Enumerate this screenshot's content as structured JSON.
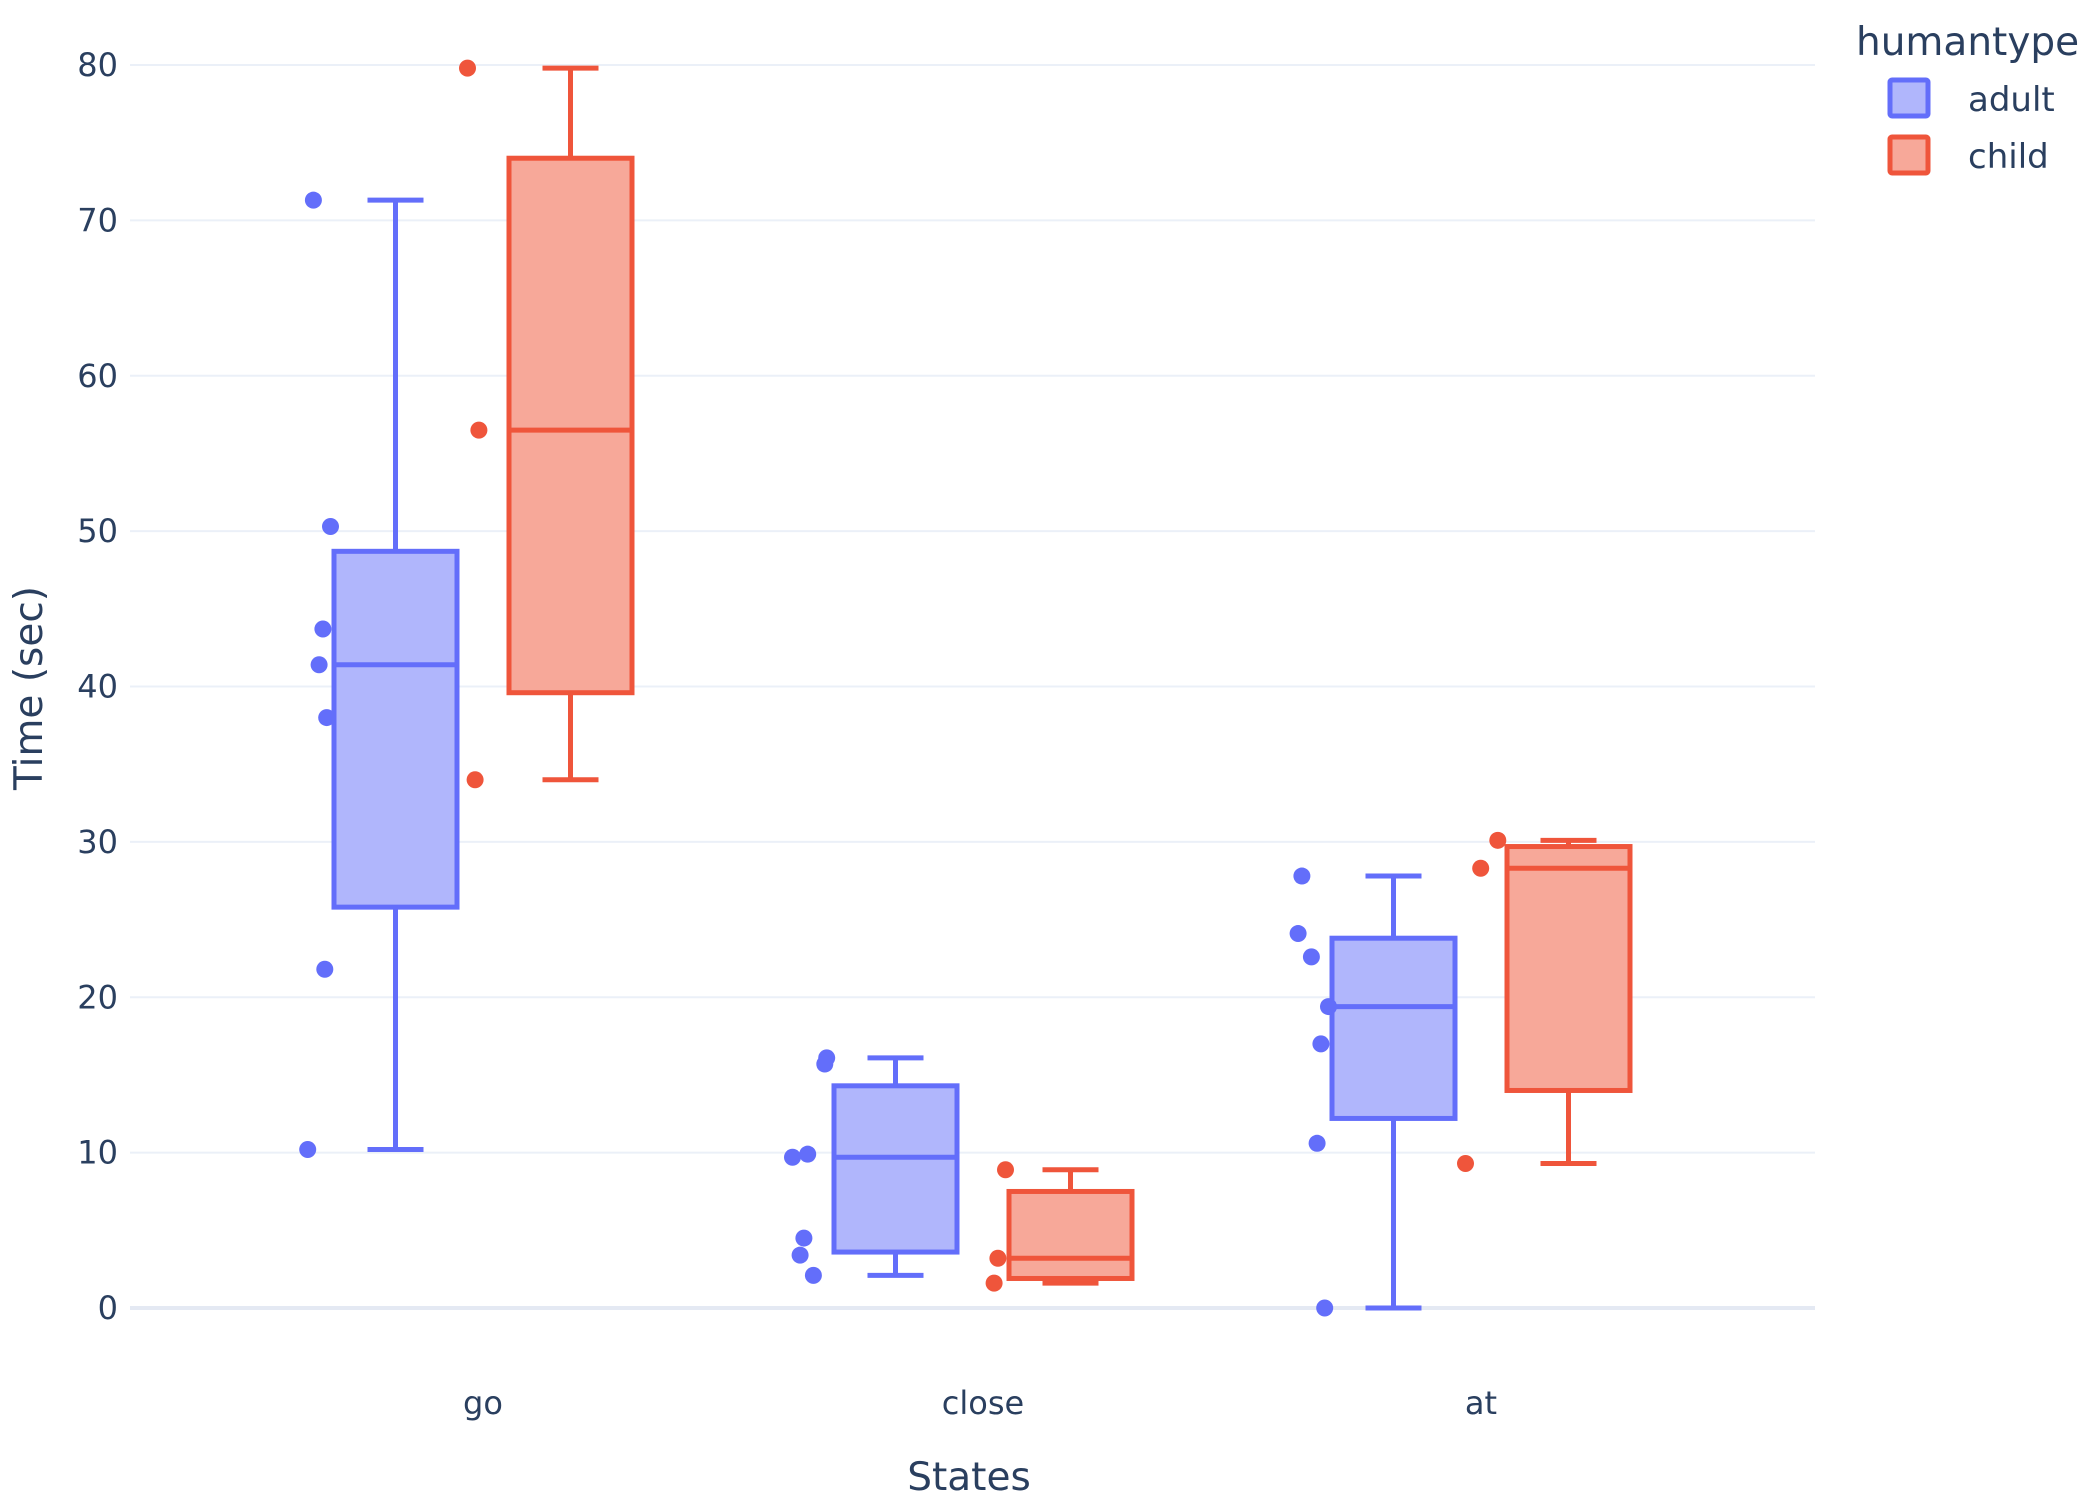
{
  "chart_data": {
    "type": "box",
    "title": "",
    "xlabel": "States",
    "ylabel": "Time (sec)",
    "categories": [
      "go",
      "close",
      "at"
    ],
    "ylim": [
      -5.5,
      83.5
    ],
    "yticks": [
      0,
      10,
      20,
      30,
      40,
      50,
      60,
      70,
      80
    ],
    "grid": true,
    "legend": {
      "title": "humantype",
      "placement": "top-right"
    },
    "series": [
      {
        "name": "adult",
        "color": "#636efa",
        "fill": "#b0b6fc",
        "boxes": [
          {
            "category": "go",
            "min": 10.2,
            "q1": 25.8,
            "median": 41.4,
            "q3": 48.7,
            "max": 71.3,
            "points": [
              71.3,
              50.3,
              43.7,
              41.4,
              38.0,
              21.8,
              10.2
            ]
          },
          {
            "category": "close",
            "min": 2.1,
            "q1": 3.6,
            "median": 9.7,
            "q3": 14.3,
            "max": 16.1,
            "points": [
              16.1,
              15.7,
              9.9,
              9.7,
              4.5,
              3.4,
              2.1
            ]
          },
          {
            "category": "at",
            "min": 0.0,
            "q1": 12.2,
            "median": 19.4,
            "q3": 23.8,
            "max": 27.8,
            "points": [
              27.8,
              24.1,
              22.6,
              19.4,
              17.0,
              10.6,
              0.0
            ]
          }
        ]
      },
      {
        "name": "child",
        "color": "#ef553b",
        "fill": "#f7a899",
        "boxes": [
          {
            "category": "go",
            "min": 34.0,
            "q1": 39.6,
            "median": 56.5,
            "q3": 74.0,
            "max": 79.8,
            "points": [
              79.8,
              56.5,
              34.0
            ]
          },
          {
            "category": "close",
            "min": 1.6,
            "q1": 1.9,
            "median": 3.2,
            "q3": 7.5,
            "max": 8.9,
            "points": [
              8.9,
              3.2,
              1.6
            ]
          },
          {
            "category": "at",
            "min": 9.3,
            "q1": 14.0,
            "median": 28.3,
            "q3": 29.7,
            "max": 30.1,
            "points": [
              30.1,
              28.3,
              9.3
            ]
          }
        ]
      }
    ]
  }
}
